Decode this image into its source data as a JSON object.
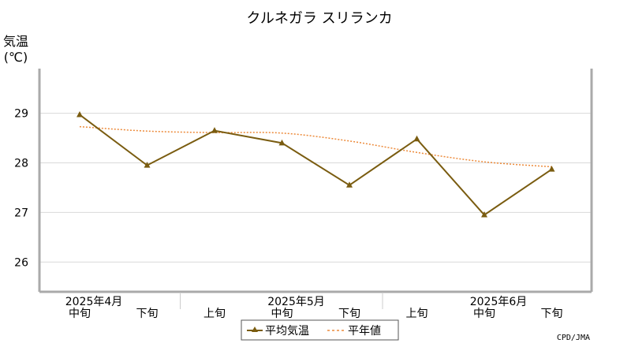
{
  "chart_data": {
    "type": "line",
    "title": "クルネガラ スリランカ",
    "ylabel_line1": "気温",
    "ylabel_line2": "(℃)",
    "ylim": [
      25.4,
      29.9
    ],
    "y_ticks": [
      26,
      27,
      28,
      29
    ],
    "grid": true,
    "categories": [
      "中旬",
      "下旬",
      "上旬",
      "中旬",
      "下旬",
      "上旬",
      "中旬",
      "下旬"
    ],
    "month_labels": [
      {
        "label": "2025年4月",
        "index": 0
      },
      {
        "label": "2025年5月",
        "index": 3
      },
      {
        "label": "2025年6月",
        "index": 6
      }
    ],
    "series": [
      {
        "name": "平均気温",
        "color": "#7a5c10",
        "style": "solid-triangle",
        "values": [
          28.97,
          27.95,
          28.65,
          28.4,
          27.55,
          28.48,
          26.95,
          27.87
        ]
      },
      {
        "name": "平年値",
        "color": "#ec8a3a",
        "style": "dotted",
        "values": [
          28.73,
          28.64,
          28.61,
          28.6,
          28.44,
          28.21,
          28.02,
          27.92
        ]
      }
    ],
    "legend_position": "bottom-center",
    "credit": "CPD/JMA"
  }
}
